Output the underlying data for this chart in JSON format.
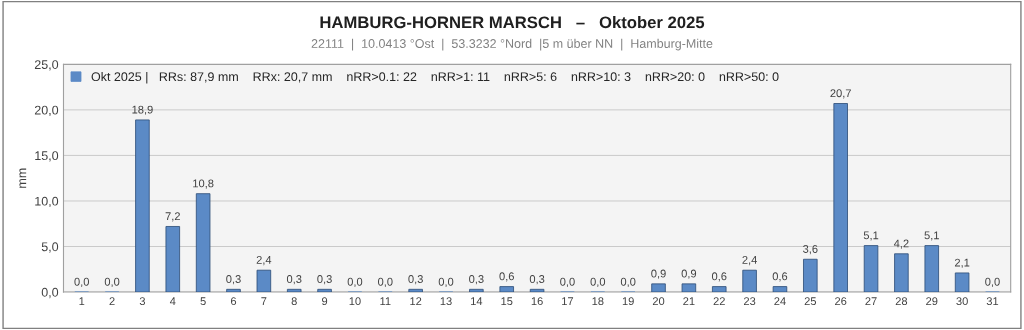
{
  "chart_data": {
    "type": "bar",
    "title": "HAMBURG-HORNER MARSCH   –   Oktober 2025",
    "subtitle": "22111  |  10.0413 °Ost  |  53.3232 °Nord  |5 m über NN  |  Hamburg-Mitte",
    "ylabel": "mm",
    "categories": [
      "1",
      "2",
      "3",
      "4",
      "5",
      "6",
      "7",
      "8",
      "9",
      "10",
      "11",
      "12",
      "13",
      "14",
      "15",
      "16",
      "17",
      "18",
      "19",
      "20",
      "21",
      "22",
      "23",
      "24",
      "25",
      "26",
      "27",
      "28",
      "29",
      "30",
      "31"
    ],
    "series": [
      {
        "name": "Okt 2025 |   RRs: 87,9 mm    RRx: 20,7 mm    nRR>0.1: 22    nRR>1: 11    nRR>5: 6    nRR>10: 3    nRR>20: 0    nRR>50: 0",
        "color": "#5b8ac6",
        "values": [
          0.0,
          0.0,
          18.9,
          7.2,
          10.8,
          0.3,
          2.4,
          0.3,
          0.3,
          0.0,
          0.0,
          0.3,
          0.0,
          0.3,
          0.6,
          0.3,
          0.0,
          0.0,
          0.0,
          0.9,
          0.9,
          0.6,
          2.4,
          0.6,
          3.6,
          20.7,
          5.1,
          4.2,
          5.1,
          2.1,
          0.0
        ],
        "value_labels": [
          "0,0",
          "0,0",
          "18,9",
          "7,2",
          "10,8",
          "0,3",
          "2,4",
          "0,3",
          "0,3",
          "0,0",
          "0,0",
          "0,3",
          "0,0",
          "0,3",
          "0,6",
          "0,3",
          "0,0",
          "0,0",
          "0,0",
          "0,9",
          "0,9",
          "0,6",
          "2,4",
          "0,6",
          "3,6",
          "20,7",
          "5,1",
          "4,2",
          "5,1",
          "2,1",
          "0,0"
        ]
      }
    ],
    "ylim": [
      0,
      25
    ],
    "yticks": [
      {
        "value": 0,
        "label": "0,0"
      },
      {
        "value": 5,
        "label": "5,0"
      },
      {
        "value": 10,
        "label": "10,0"
      },
      {
        "value": 15,
        "label": "15,0"
      },
      {
        "value": 20,
        "label": "20,0"
      },
      {
        "value": 25,
        "label": "25,0"
      }
    ],
    "grid": "y",
    "legend": "top left"
  }
}
